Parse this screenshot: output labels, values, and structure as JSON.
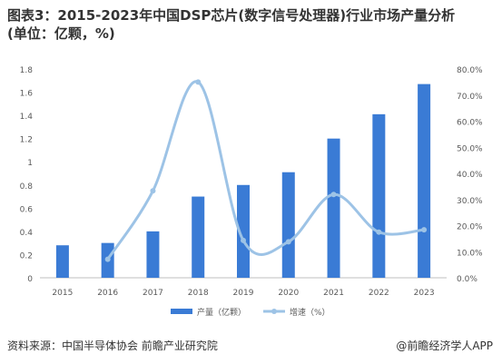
{
  "header": {
    "title_line1": "图表3：2015-2023年中国DSP芯片(数字信号处理器)行业市场产量分析",
    "title_line2": "(单位：亿颗，%)"
  },
  "footer": {
    "source": "资料来源：中国半导体协会 前瞻产业研究院",
    "brand": "@前瞻经济学人APP"
  },
  "colors": {
    "bar": "#3a7bd5",
    "line": "#9dc3e6",
    "axis": "#bfbfbf",
    "text": "#595959"
  },
  "chart_data": {
    "type": "bar",
    "categories": [
      "2015",
      "2016",
      "2017",
      "2018",
      "2019",
      "2020",
      "2021",
      "2022",
      "2023"
    ],
    "series": [
      {
        "name": "产量（亿颗）",
        "type": "bar",
        "axis": "left",
        "values": [
          0.28,
          0.3,
          0.4,
          0.7,
          0.8,
          0.91,
          1.2,
          1.41,
          1.67
        ]
      },
      {
        "name": "增速（%）",
        "type": "line",
        "axis": "right",
        "smooth": true,
        "values": [
          null,
          7.1,
          33.3,
          75.0,
          14.3,
          13.8,
          31.9,
          17.5,
          18.4
        ]
      }
    ],
    "y_left": {
      "min": 0,
      "max": 1.8,
      "step": 0.2,
      "ticks": [
        "0",
        "0.2",
        "0.4",
        "0.6",
        "0.8",
        "1",
        "1.2",
        "1.4",
        "1.6",
        "1.8"
      ]
    },
    "y_right": {
      "min": 0,
      "max": 80,
      "step": 10,
      "ticks": [
        "0.0%",
        "10.0%",
        "20.0%",
        "30.0%",
        "40.0%",
        "50.0%",
        "60.0%",
        "70.0%",
        "80.0%"
      ]
    },
    "legend_position": "bottom-center",
    "grid": false
  }
}
